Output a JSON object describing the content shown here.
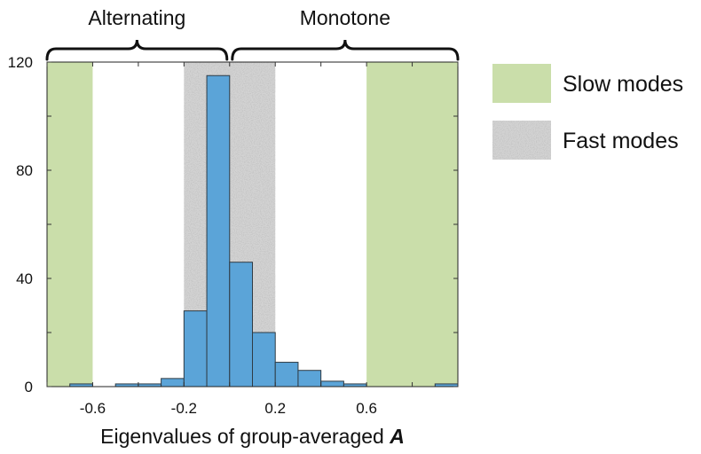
{
  "chart_data": {
    "type": "bar",
    "xlabel": "Eigenvalues of group-averaged",
    "xlabel_symbol": "A",
    "xlim": [
      -0.8,
      1.0
    ],
    "ylim": [
      0,
      120
    ],
    "xticks": [
      -0.6,
      -0.2,
      0.2,
      0.6
    ],
    "xtick_labels": [
      "-0.6",
      "-0.2",
      "0.2",
      "0.6"
    ],
    "yticks": [
      0,
      40,
      80,
      120
    ],
    "ytick_labels": [
      "0",
      "40",
      "80",
      "120"
    ],
    "bin_width": 0.1,
    "bins": [
      {
        "x0": -0.8,
        "x1": -0.7,
        "value": 0
      },
      {
        "x0": -0.7,
        "x1": -0.6,
        "value": 1
      },
      {
        "x0": -0.6,
        "x1": -0.5,
        "value": 0
      },
      {
        "x0": -0.5,
        "x1": -0.4,
        "value": 1
      },
      {
        "x0": -0.4,
        "x1": -0.3,
        "value": 1
      },
      {
        "x0": -0.3,
        "x1": -0.2,
        "value": 3
      },
      {
        "x0": -0.2,
        "x1": -0.1,
        "value": 28
      },
      {
        "x0": -0.1,
        "x1": 0.0,
        "value": 115
      },
      {
        "x0": 0.0,
        "x1": 0.1,
        "value": 46
      },
      {
        "x0": 0.1,
        "x1": 0.2,
        "value": 20
      },
      {
        "x0": 0.2,
        "x1": 0.3,
        "value": 9
      },
      {
        "x0": 0.3,
        "x1": 0.4,
        "value": 6
      },
      {
        "x0": 0.4,
        "x1": 0.5,
        "value": 2
      },
      {
        "x0": 0.5,
        "x1": 0.6,
        "value": 1
      },
      {
        "x0": 0.6,
        "x1": 0.7,
        "value": 0
      },
      {
        "x0": 0.7,
        "x1": 0.8,
        "value": 0
      },
      {
        "x0": 0.8,
        "x1": 0.9,
        "value": 0
      },
      {
        "x0": 0.9,
        "x1": 1.0,
        "value": 1
      }
    ],
    "bar_color": "#5ba4d8",
    "regions": [
      {
        "name": "Slow modes",
        "ranges": [
          [
            -0.8,
            -0.6
          ],
          [
            0.6,
            1.0
          ]
        ],
        "color": "#cadeaa"
      },
      {
        "name": "Fast modes",
        "ranges": [
          [
            -0.2,
            0.2
          ]
        ],
        "color": "#d3d3d3"
      }
    ],
    "groups": [
      {
        "label": "Alternating",
        "range": [
          -0.8,
          0.0
        ]
      },
      {
        "label": "Monotone",
        "range": [
          0.0,
          1.0
        ]
      }
    ],
    "legend": {
      "position": "right",
      "entries": [
        {
          "label": "Slow modes",
          "color": "#cadeaa"
        },
        {
          "label": "Fast modes",
          "color": "#d3d3d3"
        }
      ]
    }
  }
}
